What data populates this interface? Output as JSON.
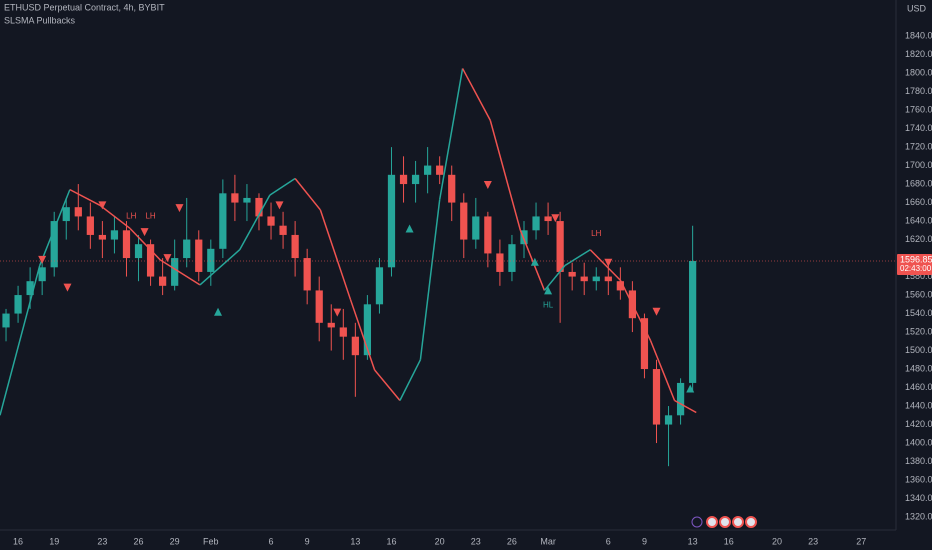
{
  "chart_data": {
    "type": "candlestick",
    "title": "ETHUSD Perpetual Contract, 4h, BYBIT",
    "subtitle": "SLSMA Pullbacks",
    "y_axis_label": "USD",
    "up_color": "#26a69a",
    "down_color": "#ef5350",
    "x": [
      15,
      16,
      17,
      18,
      19,
      20,
      21,
      22,
      23,
      24,
      25,
      26,
      27,
      28,
      29,
      30,
      31,
      32,
      33,
      34,
      35,
      36,
      37,
      38,
      39,
      40,
      41,
      42,
      43,
      44,
      45,
      46,
      47,
      48,
      49,
      50,
      51,
      52,
      53,
      54,
      55,
      56,
      57,
      58,
      59,
      60,
      61,
      62,
      63,
      64,
      65,
      66,
      67,
      68,
      69,
      70,
      71,
      72
    ],
    "open": [
      1525,
      1540,
      1560,
      1575,
      1590,
      1640,
      1655,
      1645,
      1625,
      1620,
      1630,
      1600,
      1615,
      1580,
      1570,
      1600,
      1620,
      1585,
      1610,
      1670,
      1660,
      1665,
      1645,
      1635,
      1625,
      1600,
      1565,
      1530,
      1525,
      1515,
      1495,
      1550,
      1590,
      1690,
      1680,
      1690,
      1700,
      1690,
      1660,
      1620,
      1645,
      1605,
      1585,
      1615,
      1630,
      1645,
      1640,
      1585,
      1580,
      1575,
      1580,
      1575,
      1565,
      1535,
      1480,
      1420,
      1430,
      1465
    ],
    "high": [
      1545,
      1570,
      1590,
      1600,
      1650,
      1665,
      1680,
      1660,
      1640,
      1645,
      1640,
      1625,
      1620,
      1600,
      1620,
      1665,
      1630,
      1620,
      1685,
      1690,
      1680,
      1670,
      1660,
      1650,
      1640,
      1610,
      1580,
      1550,
      1545,
      1530,
      1560,
      1600,
      1720,
      1710,
      1705,
      1720,
      1710,
      1700,
      1670,
      1665,
      1650,
      1620,
      1625,
      1640,
      1660,
      1660,
      1650,
      1595,
      1595,
      1590,
      1595,
      1590,
      1575,
      1540,
      1490,
      1440,
      1470,
      1635
    ],
    "low": [
      1510,
      1530,
      1545,
      1560,
      1580,
      1620,
      1630,
      1610,
      1600,
      1605,
      1580,
      1575,
      1570,
      1560,
      1565,
      1590,
      1575,
      1570,
      1600,
      1640,
      1640,
      1630,
      1620,
      1610,
      1580,
      1550,
      1510,
      1500,
      1490,
      1450,
      1490,
      1540,
      1580,
      1660,
      1660,
      1670,
      1680,
      1640,
      1600,
      1610,
      1590,
      1570,
      1575,
      1600,
      1620,
      1625,
      1530,
      1565,
      1560,
      1565,
      1560,
      1555,
      1520,
      1470,
      1400,
      1375,
      1420,
      1455
    ],
    "close": [
      1540,
      1560,
      1575,
      1590,
      1640,
      1655,
      1645,
      1625,
      1620,
      1630,
      1600,
      1615,
      1580,
      1570,
      1600,
      1620,
      1585,
      1610,
      1670,
      1660,
      1665,
      1645,
      1635,
      1625,
      1600,
      1565,
      1530,
      1525,
      1515,
      1495,
      1550,
      1590,
      1690,
      1680,
      1690,
      1700,
      1690,
      1660,
      1620,
      1645,
      1605,
      1585,
      1615,
      1630,
      1645,
      1640,
      1585,
      1580,
      1575,
      1580,
      1575,
      1565,
      1535,
      1480,
      1420,
      1430,
      1465,
      1596.85
    ],
    "slsma": {
      "name": "SLSMA",
      "rising_color": "#26a69a",
      "falling_color": "#ef5350",
      "x": [
        14.5,
        17.8,
        20.3,
        22.8,
        25.3,
        27.8,
        31.1,
        34.4,
        36.9,
        39,
        41.1,
        43.6,
        45.6,
        47.7,
        49.4,
        51,
        52.9,
        55.2,
        57.7,
        59.7,
        61.4,
        63.5,
        66,
        68.5,
        70.5,
        72.3
      ],
      "values": [
        1430,
        1592,
        1674,
        1657,
        1632,
        1598,
        1571,
        1609,
        1668,
        1686,
        1652,
        1555,
        1479,
        1446,
        1490,
        1663,
        1805,
        1749,
        1630,
        1565,
        1592,
        1609,
        1576,
        1511,
        1446,
        1433
      ]
    },
    "sell_signals": {
      "color": "#ef5350",
      "x": [
        18.0,
        20.1,
        23.0,
        26.5,
        28.4,
        29.4,
        37.7,
        42.5,
        55.0,
        60.6,
        65.0,
        69.0
      ],
      "y": [
        1598,
        1568,
        1657,
        1628,
        1600,
        1654,
        1657,
        1541,
        1679,
        1643,
        1595,
        1542
      ]
    },
    "buy_signals": {
      "color": "#26a69a",
      "x": [
        32.6,
        48.5,
        58.9,
        60.0,
        71.8
      ],
      "y": [
        1542,
        1632,
        1596,
        1565,
        1459
      ]
    },
    "annotations": [
      {
        "text": "LH",
        "x": 25.4,
        "y": 1645,
        "color": "#ef5350"
      },
      {
        "text": "LH",
        "x": 27.0,
        "y": 1645,
        "color": "#ef5350"
      },
      {
        "text": "LH",
        "x": 64.0,
        "y": 1626,
        "color": "#ef5350"
      },
      {
        "text": "HL",
        "x": 60.0,
        "y": 1549,
        "color": "#26a69a"
      }
    ],
    "last_price": 1596.85,
    "countdown": "02:43:00",
    "xlim": [
      14.5,
      88.8
    ],
    "ylim": [
      1306,
      1879
    ],
    "xticks": [
      {
        "value": 16,
        "label": "16"
      },
      {
        "value": 19,
        "label": "19"
      },
      {
        "value": 23,
        "label": "23"
      },
      {
        "value": 26,
        "label": "26"
      },
      {
        "value": 29,
        "label": "29"
      },
      {
        "value": 32,
        "label": "Feb"
      },
      {
        "value": 37,
        "label": "6"
      },
      {
        "value": 40,
        "label": "9"
      },
      {
        "value": 44,
        "label": "13"
      },
      {
        "value": 47,
        "label": "16"
      },
      {
        "value": 51,
        "label": "20"
      },
      {
        "value": 54,
        "label": "23"
      },
      {
        "value": 57,
        "label": "26"
      },
      {
        "value": 60,
        "label": "Mar"
      },
      {
        "value": 65,
        "label": "6"
      },
      {
        "value": 68,
        "label": "9"
      },
      {
        "value": 72,
        "label": "13"
      },
      {
        "value": 75,
        "label": "16"
      },
      {
        "value": 79,
        "label": "20"
      },
      {
        "value": 82,
        "label": "23"
      },
      {
        "value": 86,
        "label": "27"
      }
    ],
    "yticks": [
      {
        "value": 1320,
        "label": "1320.00"
      },
      {
        "value": 1340,
        "label": "1340.00"
      },
      {
        "value": 1360,
        "label": "1360.00"
      },
      {
        "value": 1380,
        "label": "1380.00"
      },
      {
        "value": 1400,
        "label": "1400.00"
      },
      {
        "value": 1420,
        "label": "1420.00"
      },
      {
        "value": 1440,
        "label": "1440.00"
      },
      {
        "value": 1460,
        "label": "1460.00"
      },
      {
        "value": 1480,
        "label": "1480.00"
      },
      {
        "value": 1500,
        "label": "1500.00"
      },
      {
        "value": 1520,
        "label": "1520.00"
      },
      {
        "value": 1540,
        "label": "1540.00"
      },
      {
        "value": 1560,
        "label": "1560.00"
      },
      {
        "value": 1580,
        "label": "1580.00"
      },
      {
        "value": 1620,
        "label": "1620.00"
      },
      {
        "value": 1640,
        "label": "1640.00"
      },
      {
        "value": 1660,
        "label": "1660.00"
      },
      {
        "value": 1680,
        "label": "1680.00"
      },
      {
        "value": 1700,
        "label": "1700.00"
      },
      {
        "value": 1720,
        "label": "1720.00"
      },
      {
        "value": 1740,
        "label": "1740.00"
      },
      {
        "value": 1760,
        "label": "1760.00"
      },
      {
        "value": 1780,
        "label": "1780.00"
      },
      {
        "value": 1800,
        "label": "1800.00"
      },
      {
        "value": 1820,
        "label": "1820.00"
      },
      {
        "value": 1840,
        "label": "1840.00"
      }
    ]
  }
}
